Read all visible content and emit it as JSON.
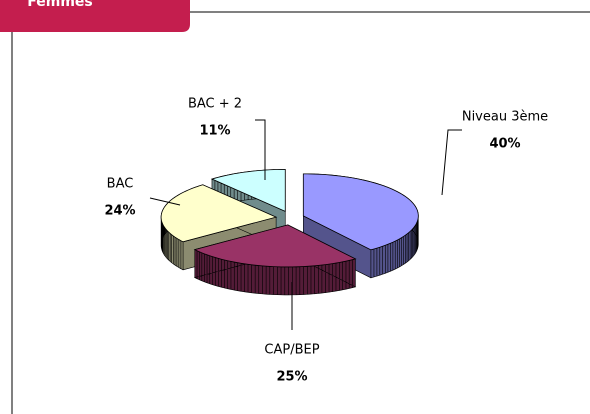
{
  "header": {
    "title": "Femmes"
  },
  "chart_data": {
    "type": "pie",
    "categories": [
      "Niveau 3ème",
      "CAP/BEP",
      "BAC",
      "BAC + 2"
    ],
    "values": [
      40,
      25,
      24,
      11
    ],
    "value_labels": [
      "40%",
      "25%",
      "24%",
      "11%"
    ],
    "colors": [
      "#9999ff",
      "#993366",
      "#ffffcc",
      "#ccffff"
    ]
  }
}
